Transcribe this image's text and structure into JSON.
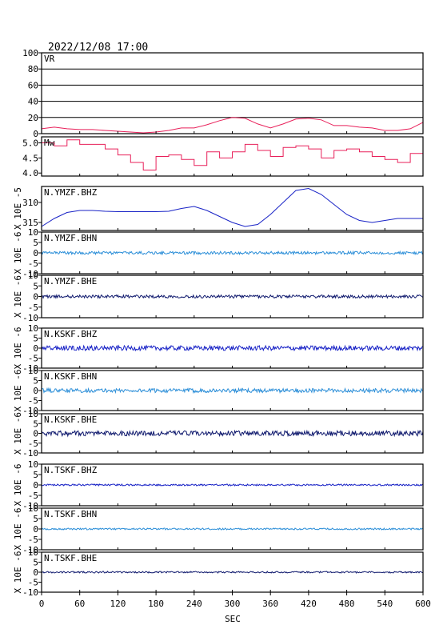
{
  "header": {
    "datetime": "2022/12/08 17:00"
  },
  "chart_data": {
    "type": "line",
    "title": "2022/12/08 17:00",
    "xlabel": "SEC",
    "xlim": [
      0,
      600
    ],
    "xticks": [
      "0",
      "60",
      "120",
      "180",
      "240",
      "300",
      "360",
      "420",
      "480",
      "540",
      "600"
    ],
    "x": [
      0,
      20,
      40,
      60,
      80,
      100,
      120,
      140,
      160,
      180,
      200,
      220,
      240,
      260,
      280,
      300,
      320,
      340,
      360,
      380,
      400,
      420,
      440,
      460,
      480,
      500,
      520,
      540,
      560,
      580,
      600
    ],
    "panels": [
      {
        "name": "VR",
        "ylabel": "",
        "ylim": [
          0,
          100
        ],
        "yticks": [
          "0",
          "20",
          "40",
          "60",
          "80",
          "100"
        ],
        "grid": true,
        "color": "#e8205a",
        "values": [
          6,
          8,
          6,
          5,
          5,
          4,
          3,
          2,
          1,
          2,
          4,
          7,
          7,
          11,
          16,
          20,
          19,
          12,
          7,
          12,
          18,
          19,
          17,
          10,
          10,
          8,
          7,
          4,
          4,
          6,
          14
        ]
      },
      {
        "name": "Mw",
        "ylabel": "",
        "ylim": [
          3.9,
          5.2
        ],
        "yticks": [
          "4.0",
          "4.5",
          "5.0"
        ],
        "grid": false,
        "color": "#e8205a",
        "values": [
          5.0,
          4.9,
          5.1,
          4.95,
          4.95,
          4.8,
          4.6,
          4.35,
          4.1,
          4.55,
          4.6,
          4.45,
          4.25,
          4.7,
          4.5,
          4.7,
          4.95,
          4.75,
          4.55,
          4.85,
          4.9,
          4.8,
          4.5,
          4.75,
          4.8,
          4.7,
          4.55,
          4.45,
          4.35,
          4.65,
          5.0
        ]
      },
      {
        "name": "N.YMZF.BHZ",
        "ylabel": "X 10E -5",
        "ylim": [
          -317,
          -306
        ],
        "yticks": [
          "310",
          "315"
        ],
        "grid": false,
        "color": "#1822c6",
        "values": [
          -316,
          -314,
          -312.5,
          -312,
          -312,
          -312.2,
          -312.3,
          -312.3,
          -312.3,
          -312.3,
          -312.2,
          -311.5,
          -311,
          -312,
          -313.5,
          -315,
          -316,
          -315.5,
          -313,
          -310,
          -307,
          -306.5,
          -308,
          -310.5,
          -313,
          -314.5,
          -315,
          -314.5,
          -314,
          -314,
          -314
        ]
      },
      {
        "name": "N.YMZF.BHN",
        "ylabel": "X 10E -6",
        "ylim": [
          -10,
          10
        ],
        "yticks": [
          "-10",
          "-5",
          "0",
          "5",
          "10"
        ],
        "grid": false,
        "color": "#2b8ed8",
        "amplitude": 0.7,
        "values": []
      },
      {
        "name": "N.YMZF.BHE",
        "ylabel": "X 10E -6",
        "ylim": [
          -10,
          10
        ],
        "yticks": [
          "-10",
          "-5",
          "0",
          "5",
          "10"
        ],
        "grid": false,
        "color": "#101a6e",
        "amplitude": 0.7,
        "values": []
      },
      {
        "name": "N.KSKF.BHZ",
        "ylabel": "X 10E -6",
        "ylim": [
          -10,
          10
        ],
        "yticks": [
          "-10",
          "-5",
          "0",
          "5",
          "10"
        ],
        "grid": false,
        "color": "#1822c6",
        "amplitude": 1.2,
        "values": []
      },
      {
        "name": "N.KSKF.BHN",
        "ylabel": "X 10E -6",
        "ylim": [
          -10,
          10
        ],
        "yticks": [
          "-10",
          "-5",
          "0",
          "5",
          "10"
        ],
        "grid": false,
        "color": "#2b8ed8",
        "amplitude": 1.0,
        "values": []
      },
      {
        "name": "N.KSKF.BHE",
        "ylabel": "X 10E -6",
        "ylim": [
          -10,
          10
        ],
        "yticks": [
          "-10",
          "-5",
          "0",
          "5",
          "10"
        ],
        "grid": false,
        "color": "#101a6e",
        "amplitude": 1.3,
        "values": []
      },
      {
        "name": "N.TSKF.BHZ",
        "ylabel": "X 10E -6",
        "ylim": [
          -10,
          10
        ],
        "yticks": [
          "-10",
          "-5",
          "0",
          "5",
          "10"
        ],
        "grid": false,
        "color": "#1822c6",
        "amplitude": 0.4,
        "values": []
      },
      {
        "name": "N.TSKF.BHN",
        "ylabel": "X 10E -6",
        "ylim": [
          -10,
          10
        ],
        "yticks": [
          "-10",
          "-5",
          "0",
          "5",
          "10"
        ],
        "grid": false,
        "color": "#2b8ed8",
        "amplitude": 0.4,
        "values": []
      },
      {
        "name": "N.TSKF.BHE",
        "ylabel": "X 10E -6",
        "ylim": [
          -10,
          10
        ],
        "yticks": [
          "-10",
          "-5",
          "0",
          "5",
          "10"
        ],
        "grid": false,
        "color": "#101a6e",
        "amplitude": 0.4,
        "values": []
      }
    ]
  }
}
